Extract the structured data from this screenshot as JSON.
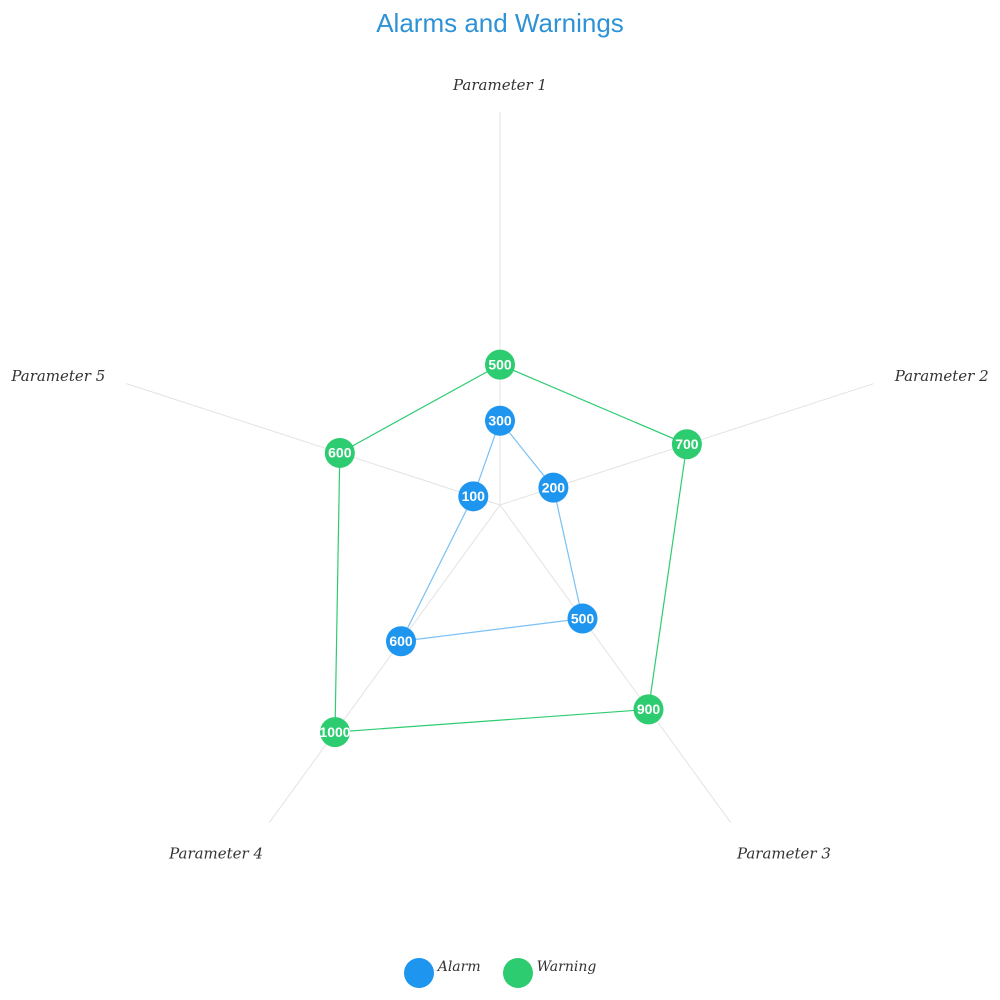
{
  "chart_data": {
    "type": "radar",
    "title": "Alarms and Warnings",
    "axes": [
      "Parameter 1",
      "Parameter 2",
      "Parameter 3",
      "Parameter 4",
      "Parameter 5"
    ],
    "range": [
      0,
      1400
    ],
    "grid": "radial spokes only",
    "legend_position": "bottom-center",
    "series": [
      {
        "name": "Alarm",
        "color": "#1e96f0",
        "values": [
          300,
          200,
          500,
          600,
          100
        ]
      },
      {
        "name": "Warning",
        "color": "#2ecc71",
        "values": [
          500,
          700,
          900,
          1000,
          600
        ]
      }
    ]
  }
}
